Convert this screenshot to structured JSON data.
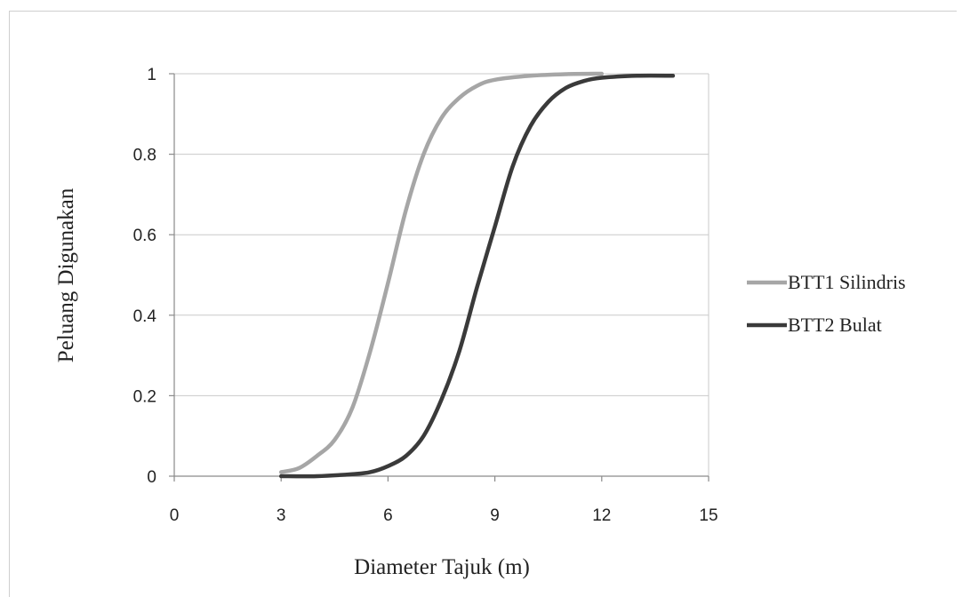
{
  "chart_data": {
    "type": "line",
    "title": "",
    "xlabel": "Diameter  Tajuk (m)",
    "ylabel": "Peluang Digunakan",
    "xlim": [
      0,
      15
    ],
    "ylim": [
      0,
      1
    ],
    "x_ticks": [
      "0",
      "3",
      "6",
      "9",
      "12",
      "15"
    ],
    "y_ticks": [
      "0",
      "0.2",
      "0.4",
      "0.6",
      "0.8",
      "1"
    ],
    "grid": "horizontal",
    "legend_position": "right",
    "series": [
      {
        "name": "BTT1 Silindris",
        "color": "#a6a6a6",
        "x": [
          3,
          3.5,
          4,
          4.5,
          5,
          5.5,
          6,
          6.5,
          7,
          7.5,
          8,
          8.5,
          9,
          10,
          11,
          12
        ],
        "y": [
          0.01,
          0.02,
          0.05,
          0.09,
          0.17,
          0.31,
          0.48,
          0.66,
          0.8,
          0.89,
          0.94,
          0.97,
          0.985,
          0.995,
          0.999,
          1.0
        ]
      },
      {
        "name": "BTT2 Bulat",
        "color": "#3a3a3a",
        "x": [
          3,
          4,
          5,
          5.5,
          6,
          6.5,
          7,
          7.5,
          8,
          8.5,
          9,
          9.5,
          10,
          10.5,
          11,
          11.5,
          12,
          13,
          14
        ],
        "y": [
          0.0,
          0.0,
          0.005,
          0.01,
          0.025,
          0.05,
          0.1,
          0.19,
          0.31,
          0.47,
          0.62,
          0.77,
          0.87,
          0.93,
          0.965,
          0.982,
          0.99,
          0.995,
          0.995
        ]
      }
    ]
  }
}
